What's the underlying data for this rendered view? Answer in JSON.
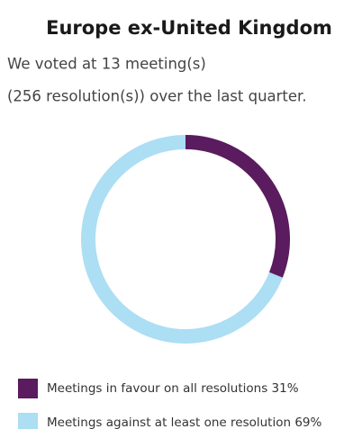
{
  "chart_data": {
    "type": "donut",
    "title": "Europe ex-United Kingdom",
    "subtitle": [
      "We voted at 13 meeting(s)",
      "(256 resolution(s)) over the last quarter."
    ],
    "categories": [
      "Meetings in favour on all resolutions",
      "Meetings against at least one resolution"
    ],
    "values": [
      31,
      69
    ],
    "value_labels": [
      "31%",
      "69%"
    ],
    "colors": [
      "#5a1b5f",
      "#acdef4"
    ]
  }
}
